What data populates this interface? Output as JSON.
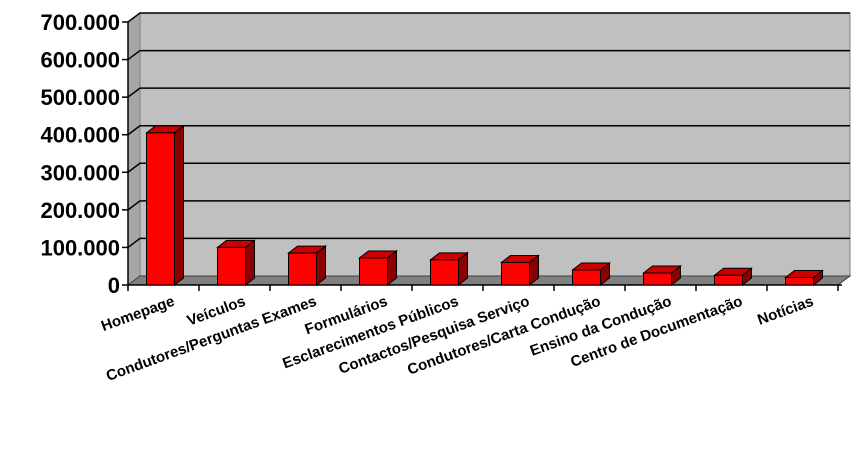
{
  "chart_data": {
    "type": "bar",
    "style": "3d-column",
    "categories": [
      "Homepage",
      "Veículos",
      "Condutores/Perguntas Exames",
      "Formulários",
      "Esclarecimentos Públicos",
      "Contactos/Pesquisa Serviço",
      "Condutores/Carta Condução",
      "Ensino da Condução",
      "Centro de Documentação",
      "Notícias"
    ],
    "values": [
      405000,
      100000,
      85000,
      72000,
      67000,
      60000,
      40000,
      32000,
      26000,
      20000
    ],
    "ylim": [
      0,
      700000
    ],
    "yticks": [
      "0",
      "100.000",
      "200.000",
      "300.000",
      "400.000",
      "500.000",
      "600.000",
      "700.000"
    ],
    "title": "",
    "xlabel": "",
    "ylabel": "",
    "grid": true,
    "colors": {
      "bar_front": "#ff0000",
      "bar_side": "#8b0000",
      "bar_top": "#cc0000",
      "plot_back": "#c0c0c0",
      "plot_floor": "#808080",
      "plot_side": "#a6a6a6",
      "gridline": "#000000"
    }
  }
}
